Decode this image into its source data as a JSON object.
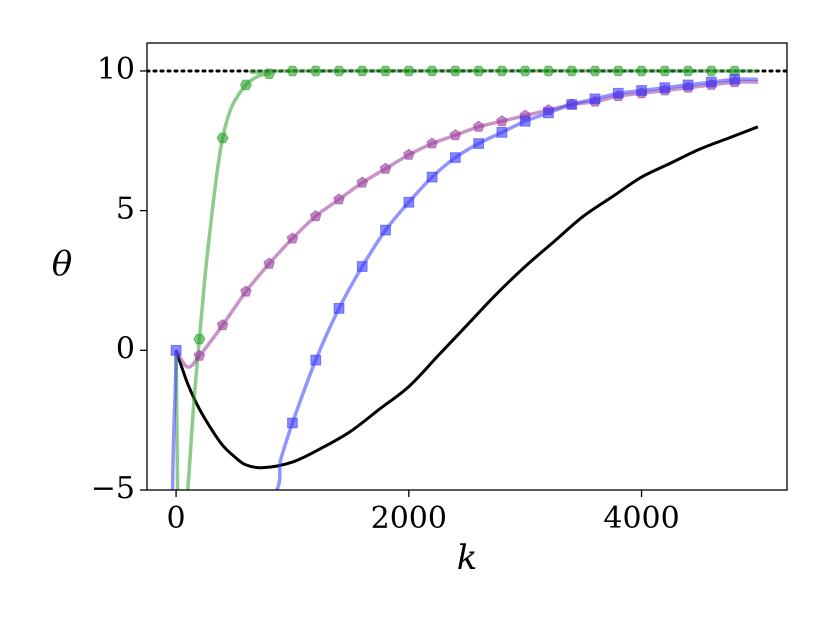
{
  "chart_data": {
    "type": "line",
    "xlabel": "k",
    "ylabel": "θ",
    "xlim": [
      -250,
      5250
    ],
    "ylim": [
      -5,
      11
    ],
    "xticks": [
      0,
      2000,
      4000
    ],
    "yticks": [
      {
        "value": -5,
        "label": "−5"
      },
      0,
      5,
      10
    ],
    "hline": {
      "value": 10,
      "color": "#000000",
      "style": "dotted"
    },
    "series": [
      {
        "color": "#000000",
        "marker": "none",
        "x": [
          0,
          100,
          200,
          300,
          400,
          500,
          600,
          750,
          1000,
          1250,
          1500,
          1750,
          2000,
          2250,
          2500,
          2750,
          3000,
          3250,
          3500,
          3750,
          4000,
          4250,
          4500,
          4750,
          5000
        ],
        "values": [
          0,
          -1.2,
          -2.1,
          -2.8,
          -3.4,
          -3.8,
          -4.1,
          -4.2,
          -4.0,
          -3.5,
          -2.9,
          -2.1,
          -1.3,
          -0.2,
          0.9,
          2.0,
          3.0,
          3.9,
          4.8,
          5.5,
          6.2,
          6.7,
          7.2,
          7.6,
          8.0
        ]
      },
      {
        "color": "#2ca02c",
        "marker": "hexagon",
        "x": [
          0,
          30,
          100,
          150,
          200,
          250,
          300,
          350,
          400,
          450,
          500,
          600,
          700,
          800,
          1000,
          5000
        ],
        "values": [
          0,
          -8,
          -5,
          -2,
          0.4,
          2.7,
          4.6,
          6.3,
          7.6,
          8.4,
          8.9,
          9.5,
          9.8,
          9.9,
          10,
          10
        ],
        "marker_x": [
          200,
          400,
          600,
          800,
          1000,
          1200,
          1400,
          1600,
          1800,
          2000,
          2200,
          2400,
          2600,
          2800,
          3000,
          3200,
          3400,
          3600,
          3800,
          4000,
          4200,
          4400,
          4600,
          4800
        ],
        "marker_values": [
          0.4,
          7.6,
          9.5,
          9.9,
          10,
          10,
          10,
          10,
          10,
          10,
          10,
          10,
          10,
          10,
          10,
          10,
          10,
          10,
          10,
          10,
          10,
          10,
          10,
          10
        ]
      },
      {
        "color": "#9b3d9b",
        "marker": "pentagon",
        "x": [
          0,
          100,
          200,
          400,
          600,
          800,
          1000,
          1200,
          1400,
          1600,
          1800,
          2000,
          2200,
          2400,
          2600,
          2800,
          3000,
          3200,
          3400,
          3600,
          3800,
          4000,
          4200,
          4400,
          4600,
          4800,
          5000
        ],
        "values": [
          0,
          -0.6,
          -0.2,
          0.9,
          2.1,
          3.1,
          4.0,
          4.8,
          5.4,
          6.0,
          6.5,
          7.0,
          7.4,
          7.7,
          8.0,
          8.2,
          8.4,
          8.6,
          8.8,
          8.9,
          9.1,
          9.2,
          9.3,
          9.4,
          9.5,
          9.6,
          9.6
        ],
        "marker_x": [
          200,
          400,
          600,
          800,
          1000,
          1200,
          1400,
          1600,
          1800,
          2000,
          2200,
          2400,
          2600,
          2800,
          3000,
          3200,
          3400,
          3600,
          3800,
          4000,
          4200,
          4400,
          4600,
          4800
        ],
        "marker_values": [
          -0.2,
          0.9,
          2.1,
          3.1,
          4.0,
          4.8,
          5.4,
          6.0,
          6.5,
          7.0,
          7.4,
          7.7,
          8.0,
          8.2,
          8.4,
          8.6,
          8.8,
          8.9,
          9.1,
          9.2,
          9.3,
          9.4,
          9.5,
          9.6
        ]
      },
      {
        "color": "#3a3aff",
        "marker": "square",
        "x": [
          0,
          40,
          800,
          900,
          1000,
          1200,
          1400,
          1600,
          1800,
          2000,
          2200,
          2400,
          2600,
          2800,
          3000,
          3200,
          3400,
          3600,
          3800,
          4000,
          4200,
          4400,
          4600,
          4800,
          5000
        ],
        "values": [
          0,
          -8,
          -5.4,
          -3.9,
          -2.6,
          -0.35,
          1.5,
          3.0,
          4.3,
          5.3,
          6.2,
          6.9,
          7.4,
          7.8,
          8.2,
          8.5,
          8.8,
          9.0,
          9.2,
          9.3,
          9.4,
          9.5,
          9.6,
          9.7,
          9.7
        ],
        "marker_x": [
          0,
          1000,
          1200,
          1400,
          1600,
          1800,
          2000,
          2200,
          2400,
          2600,
          2800,
          3000,
          3200,
          3400,
          3600,
          3800,
          4000,
          4200,
          4400,
          4600,
          4800
        ],
        "marker_values": [
          0,
          -2.6,
          -0.35,
          1.5,
          3.0,
          4.3,
          5.3,
          6.2,
          6.9,
          7.4,
          7.8,
          8.2,
          8.5,
          8.8,
          9.0,
          9.2,
          9.3,
          9.4,
          9.5,
          9.6,
          9.7
        ]
      }
    ]
  }
}
